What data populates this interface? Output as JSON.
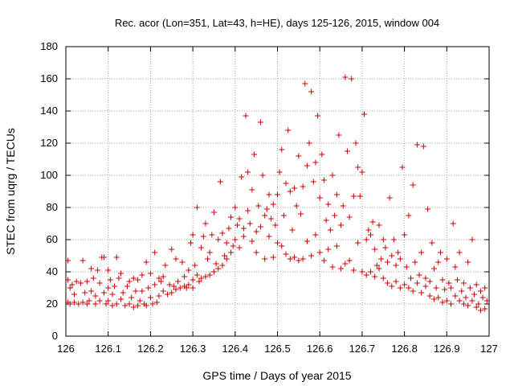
{
  "chart_data": {
    "type": "scatter",
    "title": "Rec. acor (Lon=351, Lat=43, h=HE), days 125-126, 2015, window 004",
    "xlabel": "GPS time / Days of year 2015",
    "ylabel": "STEC from uqrg / TECUs",
    "xlim": [
      126,
      127
    ],
    "ylim": [
      0,
      180
    ],
    "xticks": [
      "126",
      "126.1",
      "126.2",
      "126.3",
      "126.4",
      "126.5",
      "126.6",
      "126.7",
      "126.8",
      "126.9",
      "127"
    ],
    "yticks": [
      "0",
      "20",
      "40",
      "60",
      "80",
      "100",
      "120",
      "140",
      "160",
      "180"
    ],
    "marker": "+",
    "marker_color": "#cc0000",
    "series": [
      {
        "name": "STEC",
        "points": [
          [
            126.005,
            47
          ],
          [
            126.005,
            35
          ],
          [
            126.005,
            21
          ],
          [
            126.01,
            20
          ],
          [
            126.01,
            30
          ],
          [
            126.015,
            32
          ],
          [
            126.02,
            21
          ],
          [
            126.02,
            26
          ],
          [
            126.025,
            34
          ],
          [
            126.03,
            20
          ],
          [
            126.035,
            33
          ],
          [
            126.04,
            47
          ],
          [
            126.04,
            21
          ],
          [
            126.045,
            27
          ],
          [
            126.05,
            34
          ],
          [
            126.05,
            20
          ],
          [
            126.055,
            22
          ],
          [
            126.06,
            42
          ],
          [
            126.06,
            28
          ],
          [
            126.065,
            36
          ],
          [
            126.07,
            20
          ],
          [
            126.07,
            25
          ],
          [
            126.075,
            41
          ],
          [
            126.08,
            33
          ],
          [
            126.08,
            22
          ],
          [
            126.085,
            49
          ],
          [
            126.09,
            49
          ],
          [
            126.09,
            27
          ],
          [
            126.095,
            20
          ],
          [
            126.1,
            41
          ],
          [
            126.1,
            30
          ],
          [
            126.1,
            22
          ],
          [
            126.105,
            35
          ],
          [
            126.11,
            19
          ],
          [
            126.11,
            26
          ],
          [
            126.115,
            31
          ],
          [
            126.12,
            49
          ],
          [
            126.12,
            20
          ],
          [
            126.125,
            36
          ],
          [
            126.13,
            39
          ],
          [
            126.13,
            23
          ],
          [
            126.135,
            27
          ],
          [
            126.14,
            19
          ],
          [
            126.145,
            31
          ],
          [
            126.15,
            34
          ],
          [
            126.15,
            20
          ],
          [
            126.155,
            24
          ],
          [
            126.16,
            36
          ],
          [
            126.16,
            18
          ],
          [
            126.165,
            28
          ],
          [
            126.17,
            35
          ],
          [
            126.17,
            19
          ],
          [
            126.175,
            22
          ],
          [
            126.18,
            38
          ],
          [
            126.18,
            28
          ],
          [
            126.185,
            20
          ],
          [
            126.19,
            46
          ],
          [
            126.19,
            19
          ],
          [
            126.195,
            30
          ],
          [
            126.2,
            39
          ],
          [
            126.2,
            24
          ],
          [
            126.205,
            20
          ],
          [
            126.21,
            52
          ],
          [
            126.21,
            32
          ],
          [
            126.215,
            21
          ],
          [
            126.22,
            36
          ],
          [
            126.22,
            25
          ],
          [
            126.225,
            34
          ],
          [
            126.23,
            37
          ],
          [
            126.23,
            28
          ],
          [
            126.235,
            44
          ],
          [
            126.24,
            26
          ],
          [
            126.245,
            32
          ],
          [
            126.25,
            54
          ],
          [
            126.25,
            27
          ],
          [
            126.255,
            31
          ],
          [
            126.26,
            48
          ],
          [
            126.26,
            29
          ],
          [
            126.265,
            34
          ],
          [
            126.27,
            30
          ],
          [
            126.275,
            46
          ],
          [
            126.28,
            31
          ],
          [
            126.28,
            37
          ],
          [
            126.285,
            30
          ],
          [
            126.29,
            41
          ],
          [
            126.29,
            32
          ],
          [
            126.295,
            58
          ],
          [
            126.3,
            63
          ],
          [
            126.3,
            35
          ],
          [
            126.3,
            30
          ],
          [
            126.305,
            44
          ],
          [
            126.31,
            80
          ],
          [
            126.31,
            38
          ],
          [
            126.315,
            34
          ],
          [
            126.32,
            55
          ],
          [
            126.32,
            36
          ],
          [
            126.325,
            62
          ],
          [
            126.33,
            70
          ],
          [
            126.33,
            37
          ],
          [
            126.335,
            48
          ],
          [
            126.34,
            52
          ],
          [
            126.34,
            38
          ],
          [
            126.345,
            63
          ],
          [
            126.35,
            77
          ],
          [
            126.35,
            40
          ],
          [
            126.355,
            45
          ],
          [
            126.36,
            60
          ],
          [
            126.36,
            42
          ],
          [
            126.365,
            96
          ],
          [
            126.37,
            64
          ],
          [
            126.37,
            44
          ],
          [
            126.375,
            50
          ],
          [
            126.38,
            58
          ],
          [
            126.38,
            48
          ],
          [
            126.385,
            67
          ],
          [
            126.39,
            74
          ],
          [
            126.39,
            52
          ],
          [
            126.395,
            56
          ],
          [
            126.4,
            80
          ],
          [
            126.4,
            60
          ],
          [
            126.405,
            69
          ],
          [
            126.41,
            73
          ],
          [
            126.41,
            55
          ],
          [
            126.415,
            99
          ],
          [
            126.42,
            67
          ],
          [
            126.42,
            62
          ],
          [
            126.425,
            137
          ],
          [
            126.43,
            102
          ],
          [
            126.43,
            78
          ],
          [
            126.435,
            70
          ],
          [
            126.44,
            91
          ],
          [
            126.44,
            59
          ],
          [
            126.445,
            113
          ],
          [
            126.45,
            65
          ],
          [
            126.45,
            52
          ],
          [
            126.455,
            81
          ],
          [
            126.46,
            133
          ],
          [
            126.46,
            68
          ],
          [
            126.465,
            100
          ],
          [
            126.47,
            75
          ],
          [
            126.47,
            48
          ],
          [
            126.475,
            79
          ],
          [
            126.48,
            88
          ],
          [
            126.48,
            62
          ],
          [
            126.485,
            73
          ],
          [
            126.49,
            82
          ],
          [
            126.49,
            49
          ],
          [
            126.495,
            69
          ],
          [
            126.5,
            88
          ],
          [
            126.5,
            58
          ],
          [
            126.505,
            102
          ],
          [
            126.51,
            116
          ],
          [
            126.51,
            56
          ],
          [
            126.515,
            75
          ],
          [
            126.52,
            95
          ],
          [
            126.52,
            51
          ],
          [
            126.525,
            128
          ],
          [
            126.53,
            90
          ],
          [
            126.53,
            48
          ],
          [
            126.535,
            66
          ],
          [
            126.54,
            92
          ],
          [
            126.54,
            49
          ],
          [
            126.545,
            81
          ],
          [
            126.55,
            112
          ],
          [
            126.55,
            47
          ],
          [
            126.555,
            76
          ],
          [
            126.56,
            93
          ],
          [
            126.56,
            48
          ],
          [
            126.565,
            157
          ],
          [
            126.57,
            106
          ],
          [
            126.57,
            59
          ],
          [
            126.575,
            120
          ],
          [
            126.58,
            152
          ],
          [
            126.58,
            50
          ],
          [
            126.585,
            96
          ],
          [
            126.59,
            108
          ],
          [
            126.59,
            63
          ],
          [
            126.595,
            137
          ],
          [
            126.6,
            86
          ],
          [
            126.6,
            52
          ],
          [
            126.605,
            113
          ],
          [
            126.61,
            97
          ],
          [
            126.61,
            47
          ],
          [
            126.615,
            72
          ],
          [
            126.62,
            82
          ],
          [
            126.62,
            54
          ],
          [
            126.625,
            66
          ],
          [
            126.63,
            100
          ],
          [
            126.63,
            43
          ],
          [
            126.635,
            75
          ],
          [
            126.64,
            88
          ],
          [
            126.64,
            56
          ],
          [
            126.645,
            125
          ],
          [
            126.65,
            69
          ],
          [
            126.65,
            42
          ],
          [
            126.655,
            81
          ],
          [
            126.66,
            161
          ],
          [
            126.66,
            45
          ],
          [
            126.665,
            115
          ],
          [
            126.67,
            74
          ],
          [
            126.67,
            47
          ],
          [
            126.675,
            160
          ],
          [
            126.68,
            87
          ],
          [
            126.68,
            41
          ],
          [
            126.685,
            120
          ],
          [
            126.69,
            105
          ],
          [
            126.69,
            58
          ],
          [
            126.695,
            87
          ],
          [
            126.7,
            102
          ],
          [
            126.7,
            40
          ],
          [
            126.705,
            138
          ],
          [
            126.71,
            60
          ],
          [
            126.71,
            38
          ],
          [
            126.715,
            66
          ],
          [
            126.72,
            63
          ],
          [
            126.72,
            40
          ],
          [
            126.725,
            71
          ],
          [
            126.73,
            54
          ],
          [
            126.73,
            37
          ],
          [
            126.735,
            44
          ],
          [
            126.74,
            69
          ],
          [
            126.74,
            42
          ],
          [
            126.745,
            48
          ],
          [
            126.75,
            60
          ],
          [
            126.75,
            36
          ],
          [
            126.755,
            55
          ],
          [
            126.76,
            46
          ],
          [
            126.76,
            33
          ],
          [
            126.765,
            86
          ],
          [
            126.77,
            50
          ],
          [
            126.77,
            31
          ],
          [
            126.775,
            60
          ],
          [
            126.78,
            44
          ],
          [
            126.78,
            34
          ],
          [
            126.785,
            52
          ],
          [
            126.79,
            48
          ],
          [
            126.79,
            30
          ],
          [
            126.795,
            105
          ],
          [
            126.8,
            63
          ],
          [
            126.8,
            32
          ],
          [
            126.805,
            43
          ],
          [
            126.81,
            75
          ],
          [
            126.81,
            30
          ],
          [
            126.815,
            36
          ],
          [
            126.82,
            94
          ],
          [
            126.82,
            28
          ],
          [
            126.825,
            46
          ],
          [
            126.83,
            119
          ],
          [
            126.83,
            33
          ],
          [
            126.835,
            38
          ],
          [
            126.84,
            52
          ],
          [
            126.84,
            27
          ],
          [
            126.845,
            118
          ],
          [
            126.85,
            31
          ],
          [
            126.85,
            36
          ],
          [
            126.855,
            79
          ],
          [
            126.86,
            34
          ],
          [
            126.86,
            25
          ],
          [
            126.865,
            58
          ],
          [
            126.87,
            42
          ],
          [
            126.87,
            23
          ],
          [
            126.875,
            30
          ],
          [
            126.88,
            46
          ],
          [
            126.88,
            24
          ],
          [
            126.885,
            52
          ],
          [
            126.89,
            35
          ],
          [
            126.89,
            21
          ],
          [
            126.895,
            29
          ],
          [
            126.9,
            48
          ],
          [
            126.9,
            22
          ],
          [
            126.905,
            33
          ],
          [
            126.91,
            30
          ],
          [
            126.91,
            20
          ],
          [
            126.915,
            70
          ],
          [
            126.92,
            43
          ],
          [
            126.92,
            25
          ],
          [
            126.925,
            35
          ],
          [
            126.93,
            22
          ],
          [
            126.93,
            52
          ],
          [
            126.935,
            28
          ],
          [
            126.94,
            20
          ],
          [
            126.94,
            33
          ],
          [
            126.945,
            24
          ],
          [
            126.95,
            46
          ],
          [
            126.95,
            19
          ],
          [
            126.955,
            30
          ],
          [
            126.96,
            60
          ],
          [
            126.96,
            22
          ],
          [
            126.965,
            26
          ],
          [
            126.97,
            32
          ],
          [
            126.97,
            18
          ],
          [
            126.975,
            20
          ],
          [
            126.98,
            28
          ],
          [
            126.98,
            16
          ],
          [
            126.985,
            24
          ],
          [
            126.99,
            30
          ],
          [
            126.99,
            17
          ],
          [
            126.995,
            22
          ]
        ]
      }
    ]
  }
}
